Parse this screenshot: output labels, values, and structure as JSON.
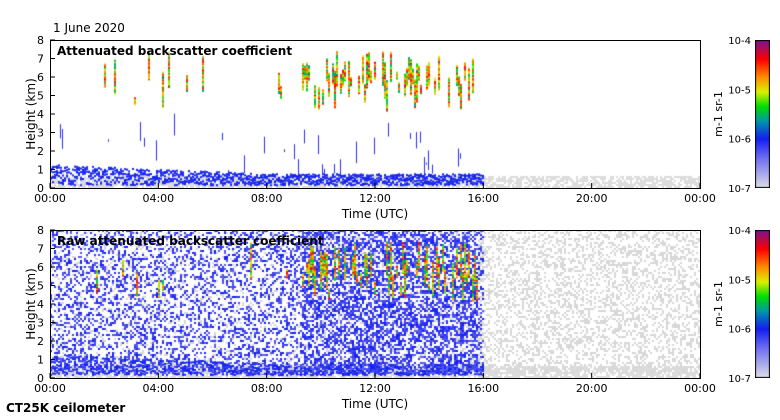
{
  "date_label": "1 June 2020",
  "footer_label": "CT25K ceilometer",
  "chart_data": [
    {
      "type": "heatmap",
      "title": "Attenuated backscatter coefficient",
      "xlabel": "Time (UTC)",
      "ylabel": "Height (km)",
      "xticks": [
        "00:00",
        "04:00",
        "08:00",
        "12:00",
        "16:00",
        "20:00",
        "00:00"
      ],
      "yticks": [
        "0",
        "1",
        "2",
        "3",
        "4",
        "5",
        "6",
        "7",
        "8"
      ],
      "xlim_hours": [
        0,
        24
      ],
      "ylim_km": [
        0,
        8
      ],
      "colorbar": {
        "label": "m-1 sr-1",
        "ticks": [
          "10-7",
          "10-6",
          "10-5",
          "10-4"
        ],
        "scale": "log",
        "range": [
          1e-07,
          0.0001
        ]
      }
    },
    {
      "type": "heatmap",
      "title": "Raw attenuated backscatter coefficient",
      "xlabel": "Time (UTC)",
      "ylabel": "Height (km)",
      "xticks": [
        "00:00",
        "04:00",
        "08:00",
        "12:00",
        "16:00",
        "20:00",
        "00:00"
      ],
      "yticks": [
        "0",
        "1",
        "2",
        "3",
        "4",
        "5",
        "6",
        "7",
        "8"
      ],
      "xlim_hours": [
        0,
        24
      ],
      "ylim_km": [
        0,
        8
      ],
      "colorbar": {
        "label": "m-1 sr-1",
        "ticks": [
          "10-7",
          "10-6",
          "10-5",
          "10-4"
        ],
        "scale": "log",
        "range": [
          1e-07,
          0.0001
        ]
      }
    }
  ]
}
